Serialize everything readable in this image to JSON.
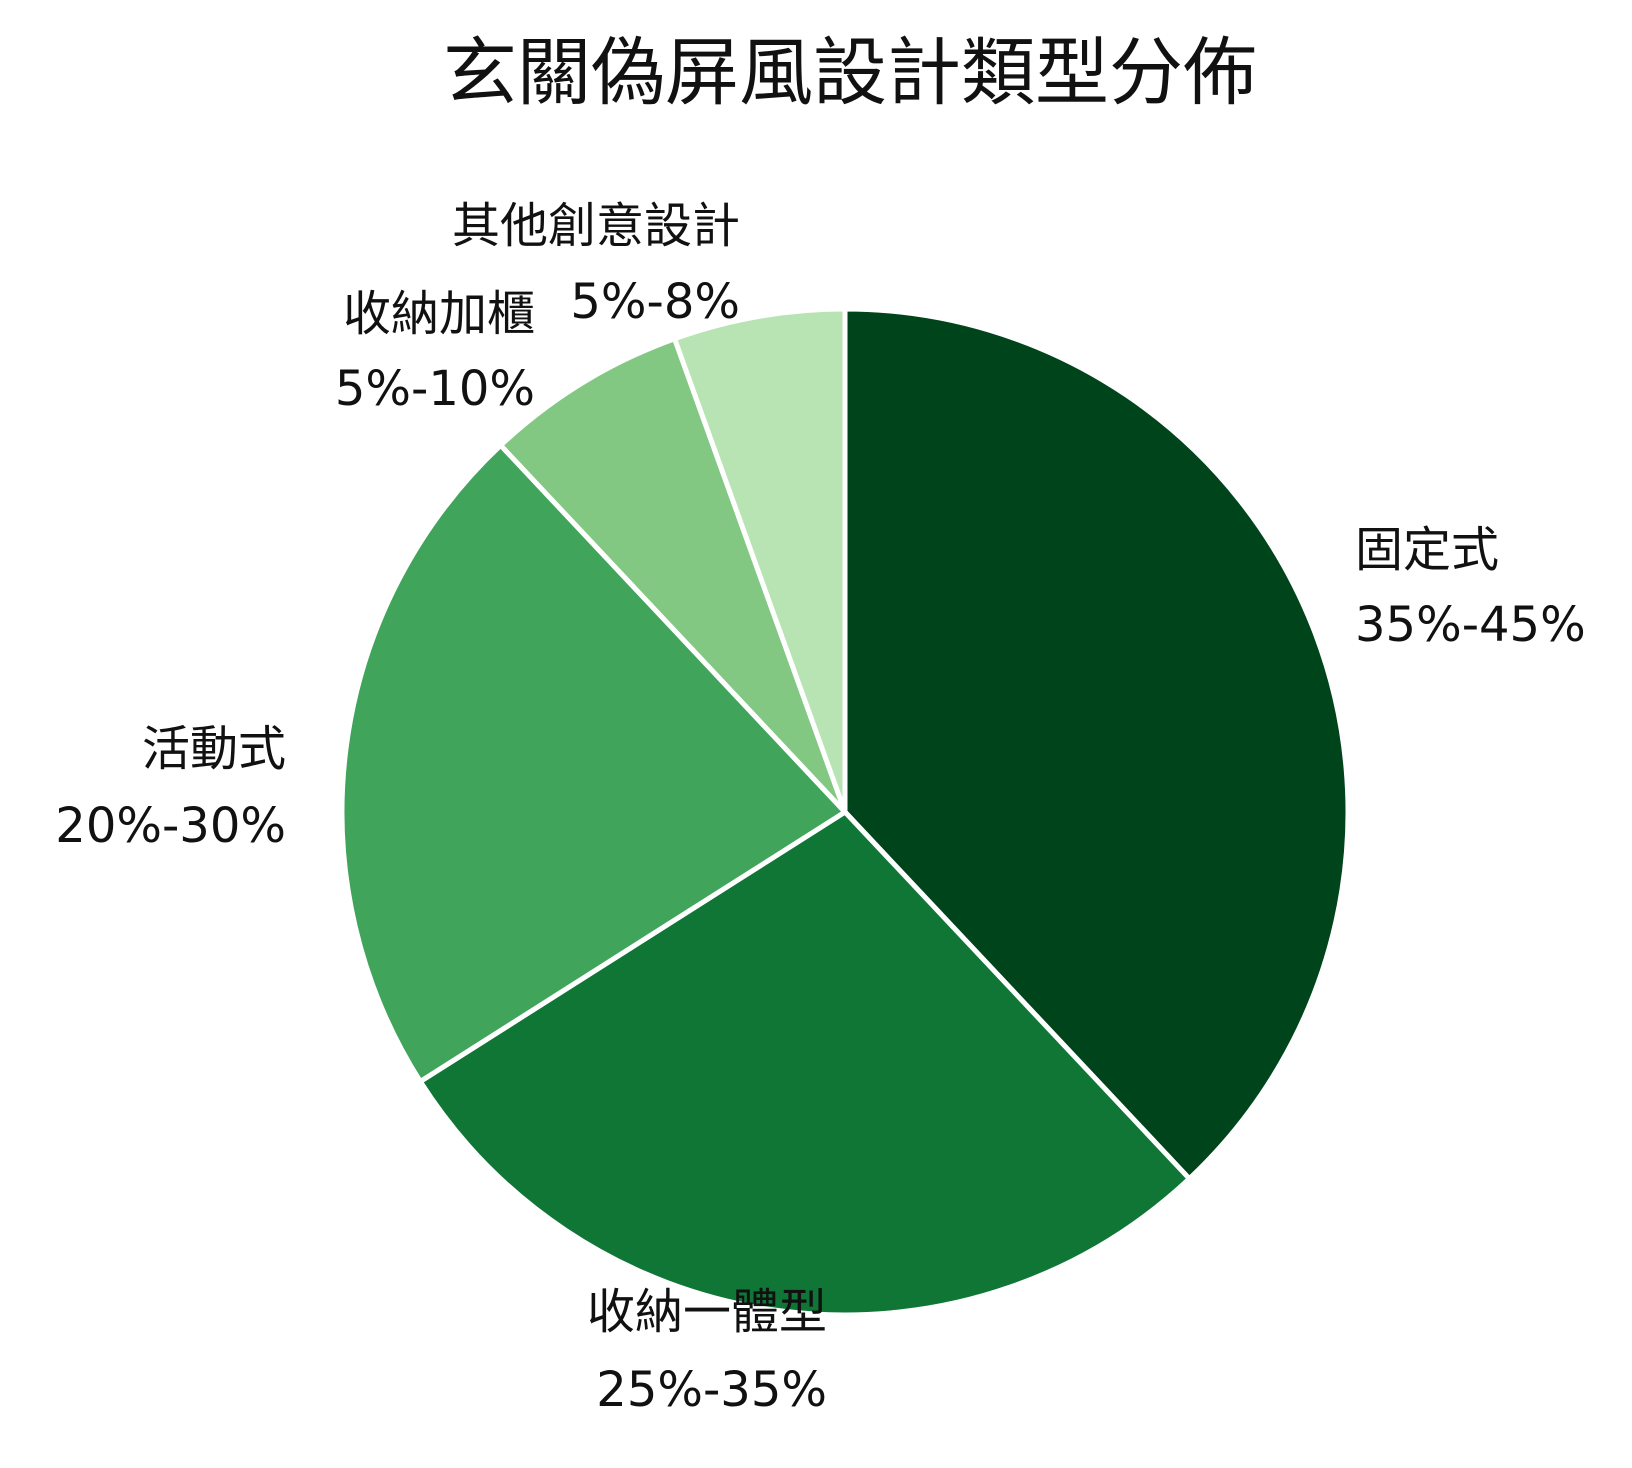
{
  "chart_data": {
    "type": "pie",
    "title": "玄關偽屏風設計類型分佈",
    "start": "12 o'clock",
    "direction": "clockwise",
    "slices": [
      {
        "label": "固定式",
        "range": "35%-45%",
        "value": 38,
        "color": "#00441b"
      },
      {
        "label": "收納一體型",
        "range": "25%-35%",
        "value": 28,
        "color": "#0f7636"
      },
      {
        "label": "活動式",
        "range": "20%-30%",
        "value": 22,
        "color": "#41a45b"
      },
      {
        "label": "收納加櫃",
        "range": "5%-10%",
        "value": 6.5,
        "color": "#82c882"
      },
      {
        "label": "其他創意設計",
        "range": "5%-8%",
        "value": 5.5,
        "color": "#b8e3b2"
      }
    ]
  }
}
